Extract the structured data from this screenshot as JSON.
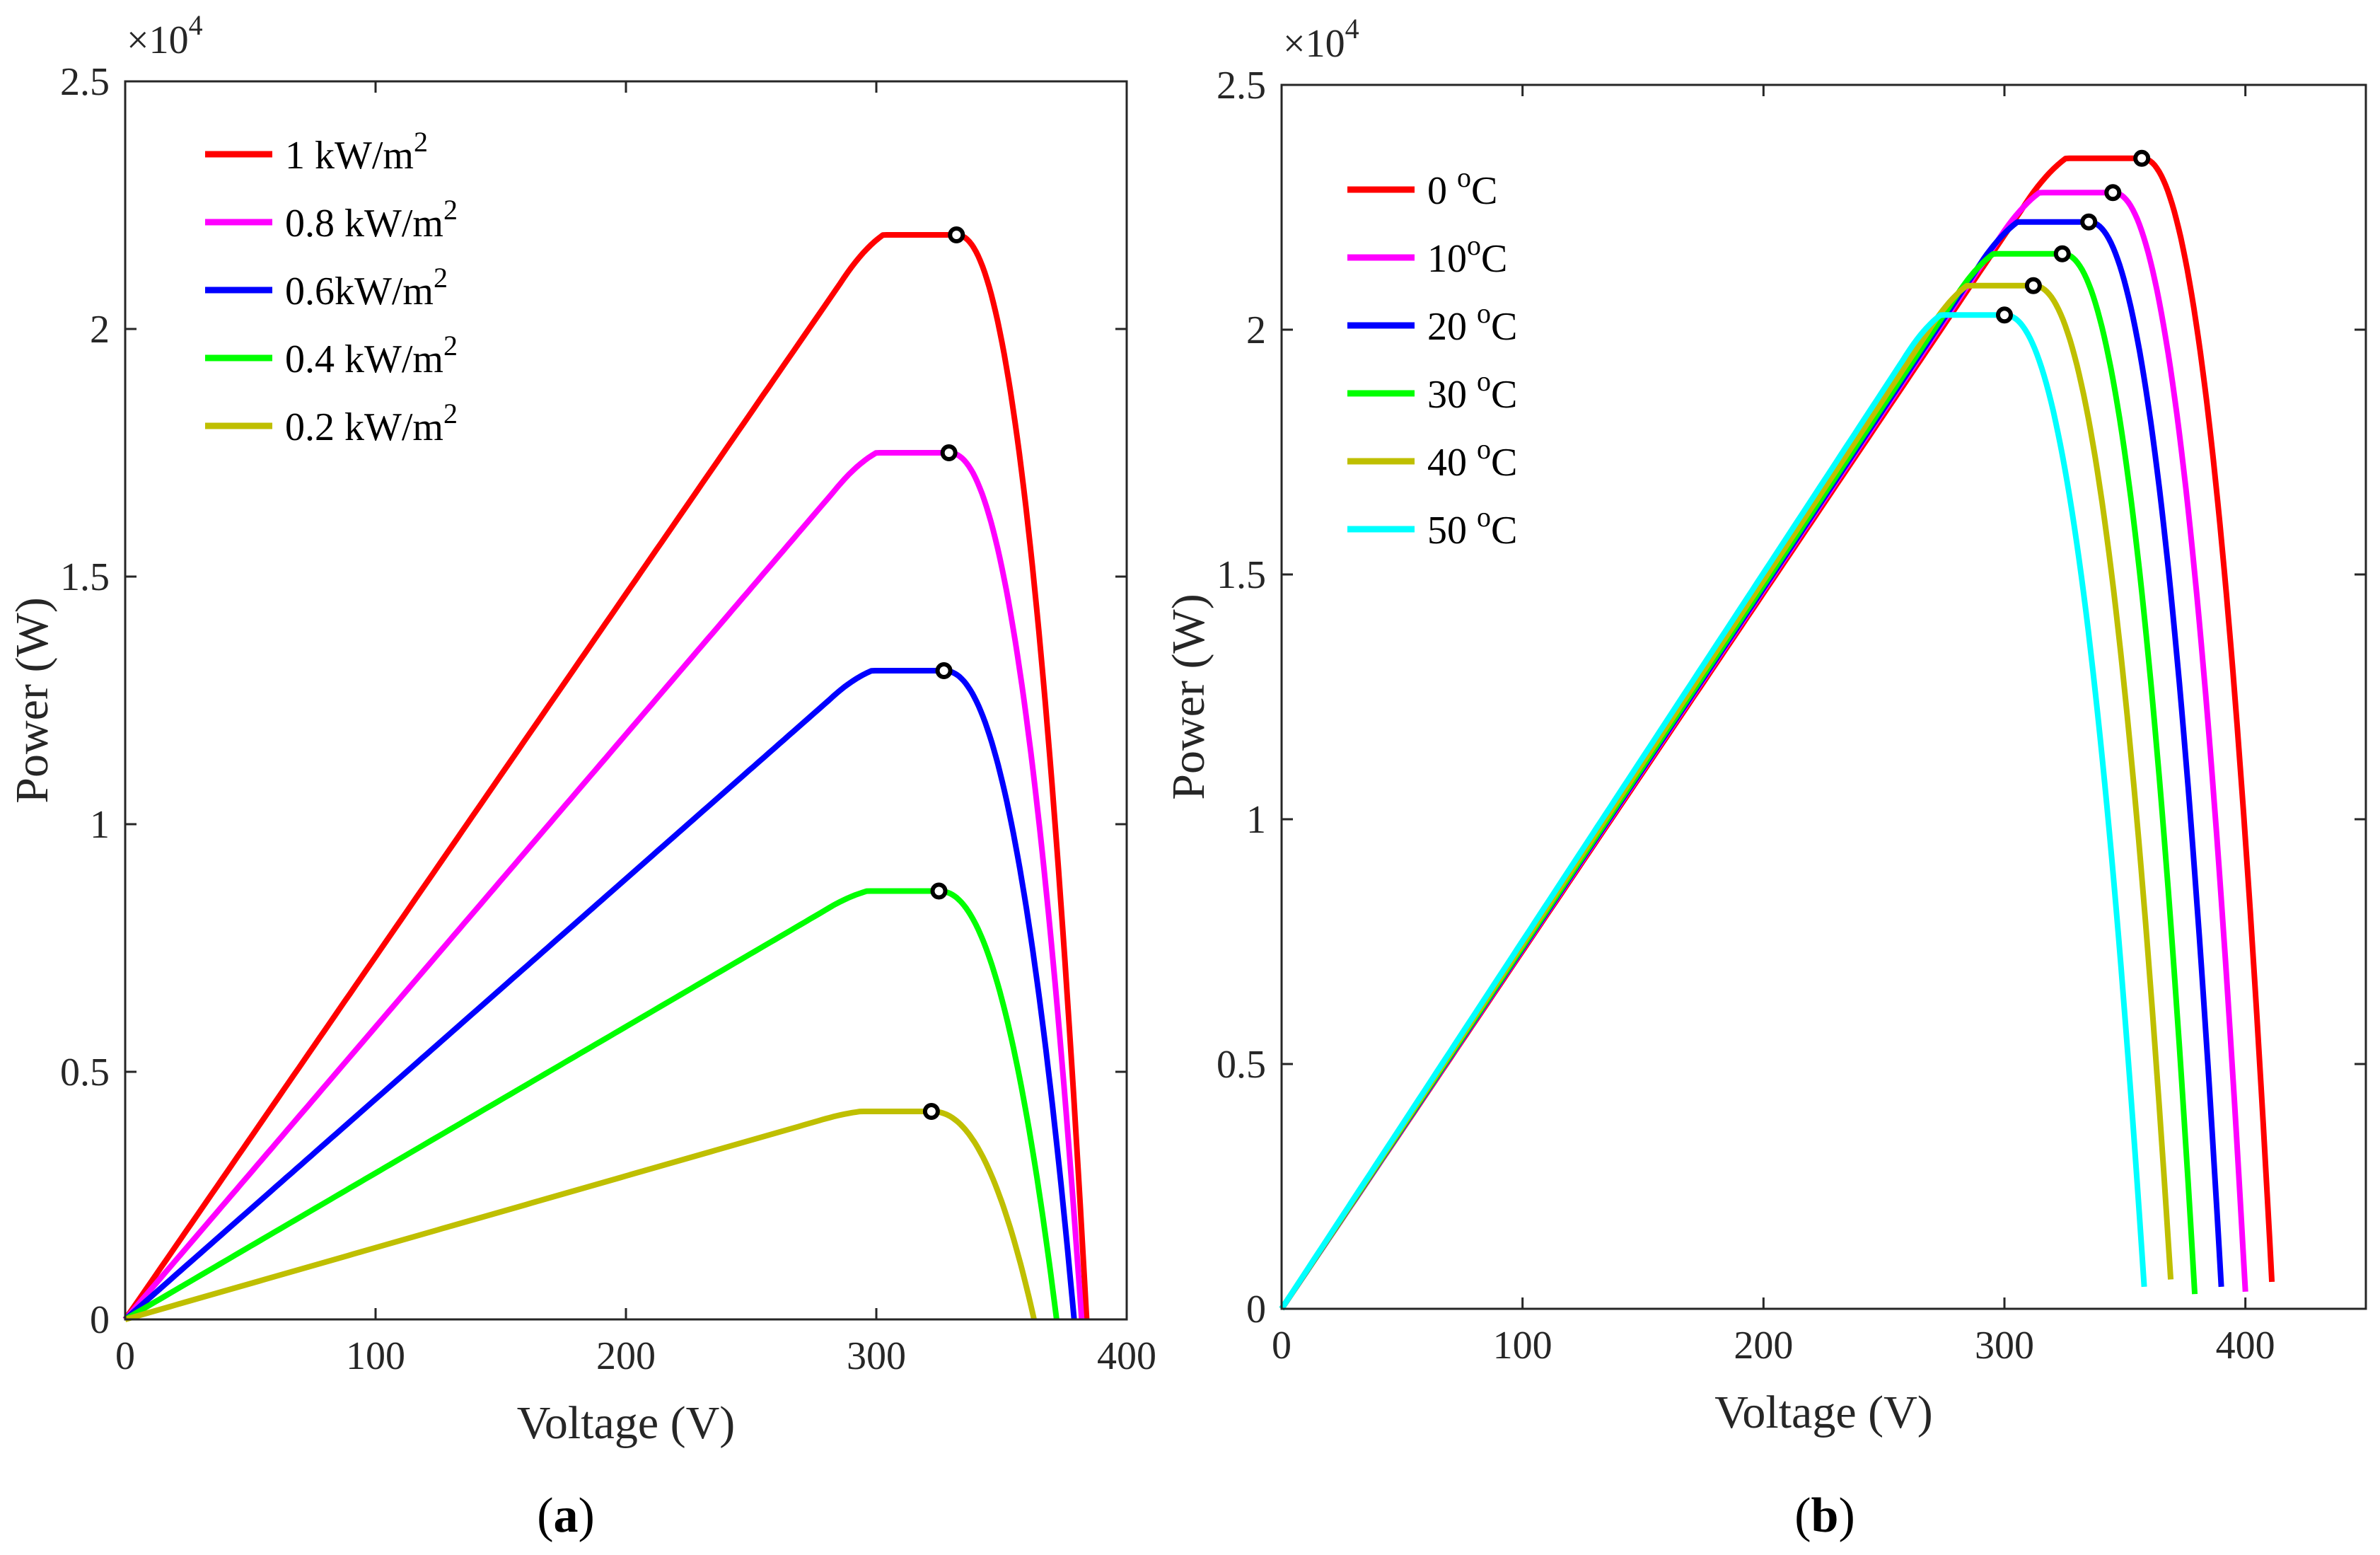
{
  "chart_data": [
    {
      "type": "line",
      "panel_label": "a",
      "xlabel": "Voltage (V)",
      "ylabel": "Power (W)",
      "y_multiplier": "×10",
      "y_exponent": "4",
      "xlim": [
        0,
        400
      ],
      "ylim": [
        0,
        2.5
      ],
      "xticks": [
        0,
        100,
        200,
        300,
        400
      ],
      "xtick_labels": [
        "0",
        "100",
        "200",
        "300",
        "400"
      ],
      "yticks": [
        0,
        0.5,
        1,
        1.5,
        2,
        2.5
      ],
      "ytick_labels": [
        "0",
        "0.5",
        "1",
        "1.5",
        "2",
        "2.5"
      ],
      "legend_position": "top-left",
      "series": [
        {
          "name": "1 kW/m",
          "sup": "2",
          "color": "#ff0000",
          "mpp_v": 332,
          "mpp_p": 2.19,
          "voc": 384
        },
        {
          "name": "0.8 kW/m",
          "sup": "2",
          "color": "#ff00ff",
          "mpp_v": 329,
          "mpp_p": 1.75,
          "voc": 382
        },
        {
          "name": "0.6kW/m",
          "sup": "2",
          "color": "#0000ff",
          "mpp_v": 327,
          "mpp_p": 1.31,
          "voc": 379
        },
        {
          "name": "0.4 kW/m",
          "sup": "2",
          "color": "#00ff00",
          "mpp_v": 325,
          "mpp_p": 0.865,
          "voc": 372
        },
        {
          "name": "0.2 kW/m",
          "sup": "2",
          "color": "#bfbf00",
          "mpp_v": 322,
          "mpp_p": 0.42,
          "voc": 363
        }
      ]
    },
    {
      "type": "line",
      "panel_label": "b",
      "xlabel": "Voltage (V)",
      "ylabel": "Power (W)",
      "y_multiplier": "×10",
      "y_exponent": "4",
      "xlim": [
        0,
        450
      ],
      "ylim": [
        0,
        2.5
      ],
      "xticks": [
        0,
        100,
        200,
        300,
        400
      ],
      "xtick_labels": [
        "0",
        "100",
        "200",
        "300",
        "400"
      ],
      "yticks": [
        0,
        0.5,
        1,
        1.5,
        2,
        2.5
      ],
      "ytick_labels": [
        "0",
        "0.5",
        "1",
        "1.5",
        "2",
        "2.5"
      ],
      "legend_position": "top-left",
      "series": [
        {
          "name": "0 ",
          "sup": "o",
          "suffix": "C",
          "color": "#ff0000",
          "mpp_v": 357,
          "mpp_p": 2.35,
          "voc": 411,
          "end_p": 0.055
        },
        {
          "name": "10",
          "sup": "o",
          "suffix": "C",
          "color": "#ff00ff",
          "mpp_v": 345,
          "mpp_p": 2.28,
          "voc": 400,
          "end_p": 0.035
        },
        {
          "name": "20 ",
          "sup": "o",
          "suffix": "C",
          "color": "#0000ff",
          "mpp_v": 335,
          "mpp_p": 2.22,
          "voc": 390,
          "end_p": 0.045
        },
        {
          "name": "30 ",
          "sup": "o",
          "suffix": "C",
          "color": "#00ff00",
          "mpp_v": 324,
          "mpp_p": 2.155,
          "voc": 379,
          "end_p": 0.03
        },
        {
          "name": "40 ",
          "sup": "o",
          "suffix": "C",
          "color": "#bfbf00",
          "mpp_v": 312,
          "mpp_p": 2.09,
          "voc": 369,
          "end_p": 0.06
        },
        {
          "name": "50 ",
          "sup": "o",
          "suffix": "C",
          "color": "#00ffff",
          "mpp_v": 300,
          "mpp_p": 2.03,
          "voc": 358,
          "end_p": 0.045
        }
      ]
    }
  ]
}
